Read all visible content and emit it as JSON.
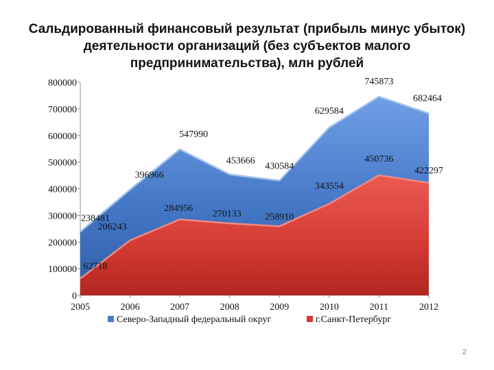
{
  "slide": {
    "title": "Сальдированный финансовый результат (прибыль минус убыток) деятельности организаций (без субъектов малого предпринимательства), млн рублей",
    "page_number": "2"
  },
  "colors": {
    "series_nw": "#4a7bc8",
    "series_spb": "#d43a33"
  },
  "chart_data": {
    "type": "area",
    "categories": [
      "2005",
      "2006",
      "2007",
      "2008",
      "2009",
      "2010",
      "2011",
      "2012"
    ],
    "series": [
      {
        "name": "Северо-Западный федеральный округ",
        "values": [
          238481,
          396966,
          547990,
          453666,
          430584,
          629584,
          745873,
          682464
        ],
        "labels": [
          "238481",
          "396966",
          "547990",
          "453666",
          "430584",
          "629584",
          "745873",
          "682464"
        ]
      },
      {
        "name": "г.Санкт-Петербург",
        "values": [
          62718,
          206243,
          284956,
          270133,
          258910,
          343554,
          450736,
          422297
        ],
        "labels": [
          "62718",
          "206243",
          "284956",
          "270133",
          "258910",
          "343554",
          "450736",
          "422297"
        ]
      }
    ],
    "ylim": [
      0,
      800000
    ],
    "yticks": [
      0,
      100000,
      200000,
      300000,
      400000,
      500000,
      600000,
      700000,
      800000
    ],
    "ytick_labels": [
      "0",
      "100000",
      "200000",
      "300000",
      "400000",
      "500000",
      "600000",
      "700000",
      "800000"
    ],
    "grid": false,
    "legend_position": "bottom"
  }
}
